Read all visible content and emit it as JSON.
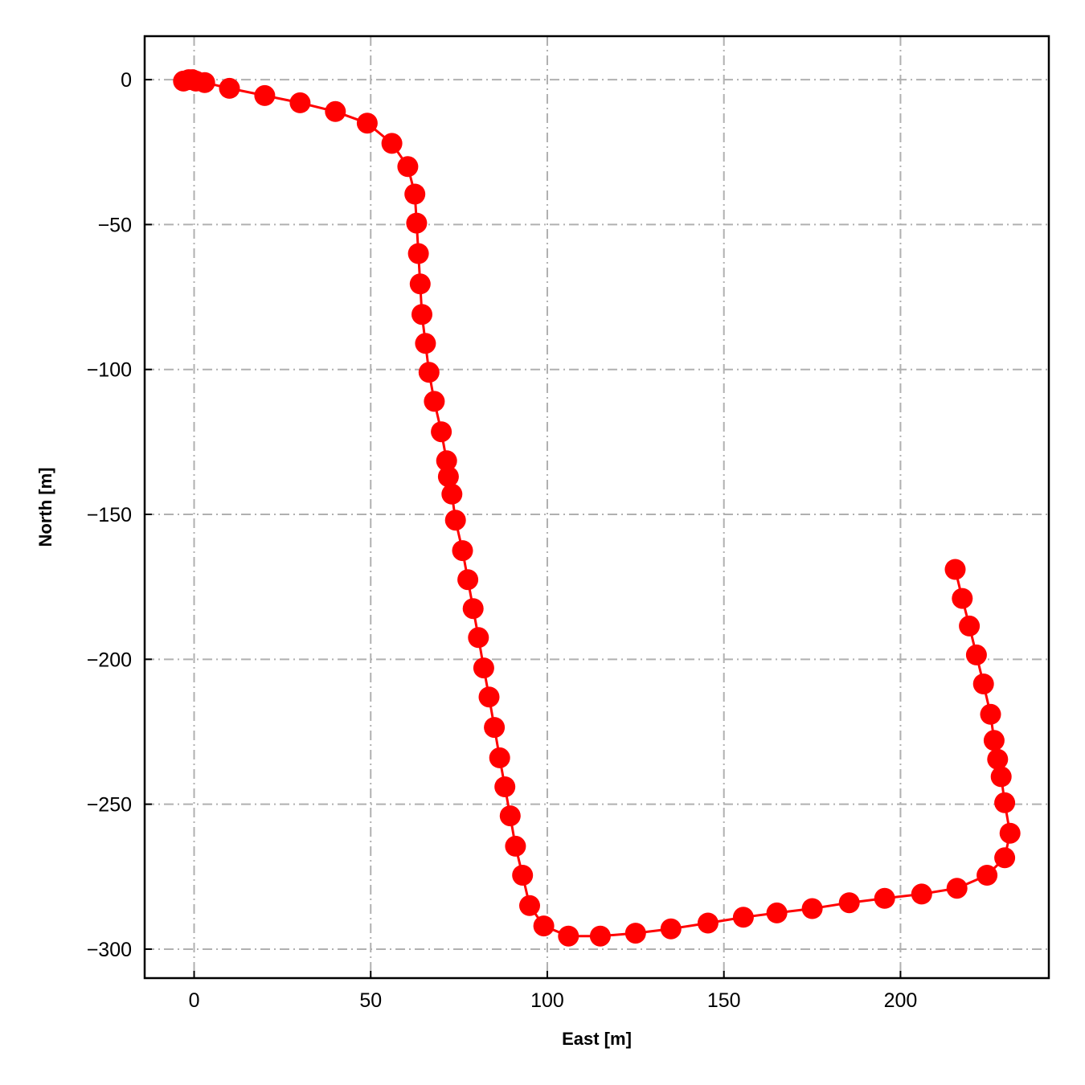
{
  "chart_data": {
    "type": "line",
    "xlabel": "East [m]",
    "ylabel": "North [m]",
    "xlim": [
      -14,
      242
    ],
    "ylim": [
      -310,
      15
    ],
    "xticks": [
      0,
      50,
      100,
      150,
      200
    ],
    "yticks": [
      0,
      -50,
      -100,
      -150,
      -200,
      -250,
      -300
    ],
    "xtick_labels": [
      "0",
      "50",
      "100",
      "150",
      "200"
    ],
    "ytick_labels": [
      "0",
      "−50",
      "−100",
      "−150",
      "−200",
      "−250",
      "−300"
    ],
    "grid": true,
    "grid_style": "dash-dot",
    "line_color": "#ff0000",
    "marker": "circle",
    "series": [
      {
        "x": [
          -3.0,
          -1.5,
          -0.5,
          0.5,
          3.0,
          10.0,
          20.0,
          30.0,
          40.0,
          49.0,
          56.0,
          60.5,
          62.5,
          63.0,
          63.5,
          64.0,
          64.5,
          65.5,
          66.5,
          68.0,
          70.0,
          71.5,
          72.0,
          73.0,
          74.0,
          76.0,
          77.5,
          79.0,
          80.5,
          82.0,
          83.5,
          85.0,
          86.5,
          88.0,
          89.5,
          91.0,
          93.0,
          95.0,
          99.0,
          106.0,
          115.0,
          125.0,
          135.0,
          145.5,
          155.5,
          165.0,
          175.0,
          185.5,
          195.5,
          206.0,
          216.0,
          224.5,
          229.5,
          231.0,
          229.5,
          228.5,
          227.5,
          226.5,
          225.5,
          223.5,
          221.5,
          219.5,
          217.5,
          215.5
        ],
        "y": [
          -0.5,
          0.0,
          0.0,
          -0.5,
          -1.0,
          -3.0,
          -5.5,
          -8.0,
          -11.0,
          -15.0,
          -22.0,
          -30.0,
          -39.5,
          -49.5,
          -60.0,
          -70.5,
          -81.0,
          -91.0,
          -101.0,
          -111.0,
          -121.5,
          -131.5,
          -137.0,
          -143.0,
          -152.0,
          -162.5,
          -172.5,
          -182.5,
          -192.5,
          -203.0,
          -213.0,
          -223.5,
          -234.0,
          -244.0,
          -254.0,
          -264.5,
          -274.5,
          -285.0,
          -292.0,
          -295.5,
          -295.5,
          -294.5,
          -293.0,
          -291.0,
          -289.0,
          -287.5,
          -286.0,
          -284.0,
          -282.5,
          -281.0,
          -279.0,
          -274.5,
          -268.5,
          -260.0,
          -249.5,
          -240.5,
          -234.5,
          -228.0,
          -219.0,
          -208.5,
          -198.5,
          -188.5,
          -179.0,
          -169.0
        ]
      }
    ]
  }
}
